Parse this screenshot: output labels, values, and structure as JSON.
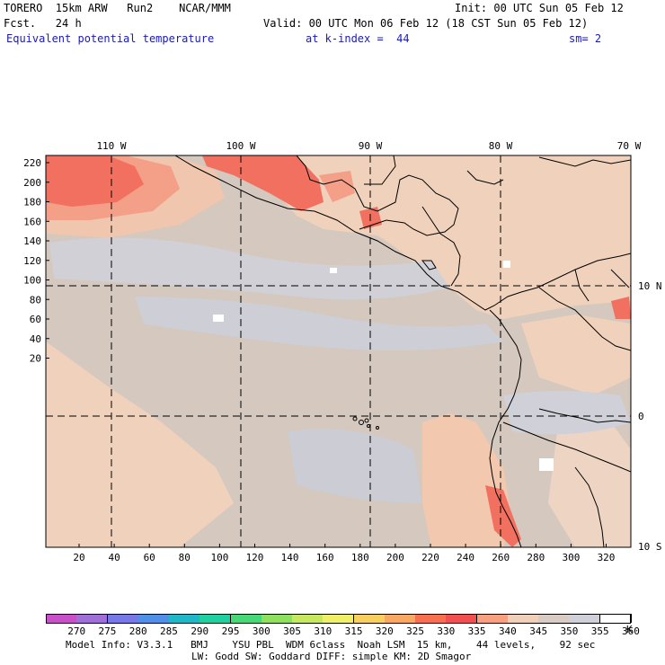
{
  "header": {
    "line1_left": "TORERO  15km ARW   Run2    NCAR/MMM",
    "line1_right": "Init: 00 UTC Sun 05 Feb 12",
    "line2_left": "Fcst.   24 h",
    "line2_right": "Valid: 00 UTC Mon 06 Feb 12 (18 CST Sun 05 Feb 12)",
    "field_name": "Equivalent potential temperature",
    "level": "at k-index =  44",
    "smoothing": "sm= 2"
  },
  "map": {
    "lon_labels": [
      "110 W",
      "100 W",
      "90 W",
      "80 W",
      "70 W"
    ],
    "lat_labels": [
      "10 N",
      "0",
      "10 S"
    ],
    "y_ticks": [
      "220",
      "200",
      "180",
      "160",
      "140",
      "120",
      "100",
      "80",
      "60",
      "40",
      "20"
    ],
    "x_ticks": [
      "20",
      "40",
      "60",
      "80",
      "100",
      "120",
      "140",
      "160",
      "180",
      "200",
      "220",
      "240",
      "260",
      "280",
      "300",
      "320"
    ]
  },
  "legend": {
    "values": [
      "270",
      "275",
      "280",
      "285",
      "290",
      "295",
      "300",
      "305",
      "310",
      "315",
      "320",
      "325",
      "330",
      "335",
      "340",
      "345",
      "350",
      "355",
      "360"
    ],
    "unit": "K",
    "colors": [
      "#c850c8",
      "#a070d8",
      "#7878e8",
      "#5090e8",
      "#20b8c8",
      "#20d0a0",
      "#48d878",
      "#90e060",
      "#c8e860",
      "#f0f068",
      "#f8d060",
      "#f8a860",
      "#f87050",
      "#f05050",
      "#f8a080",
      "#f0d0b8",
      "#d8ccc4",
      "#d0d0d8",
      "#ffffff"
    ]
  },
  "footer": {
    "line1": "Model Info: V3.3.1   BMJ    YSU PBL  WDM 6class  Noah LSM  15 km,    44 levels,    92 sec",
    "line2": "LW: Godd SW: Goddard DIFF: simple KM: 2D Smagor"
  }
}
